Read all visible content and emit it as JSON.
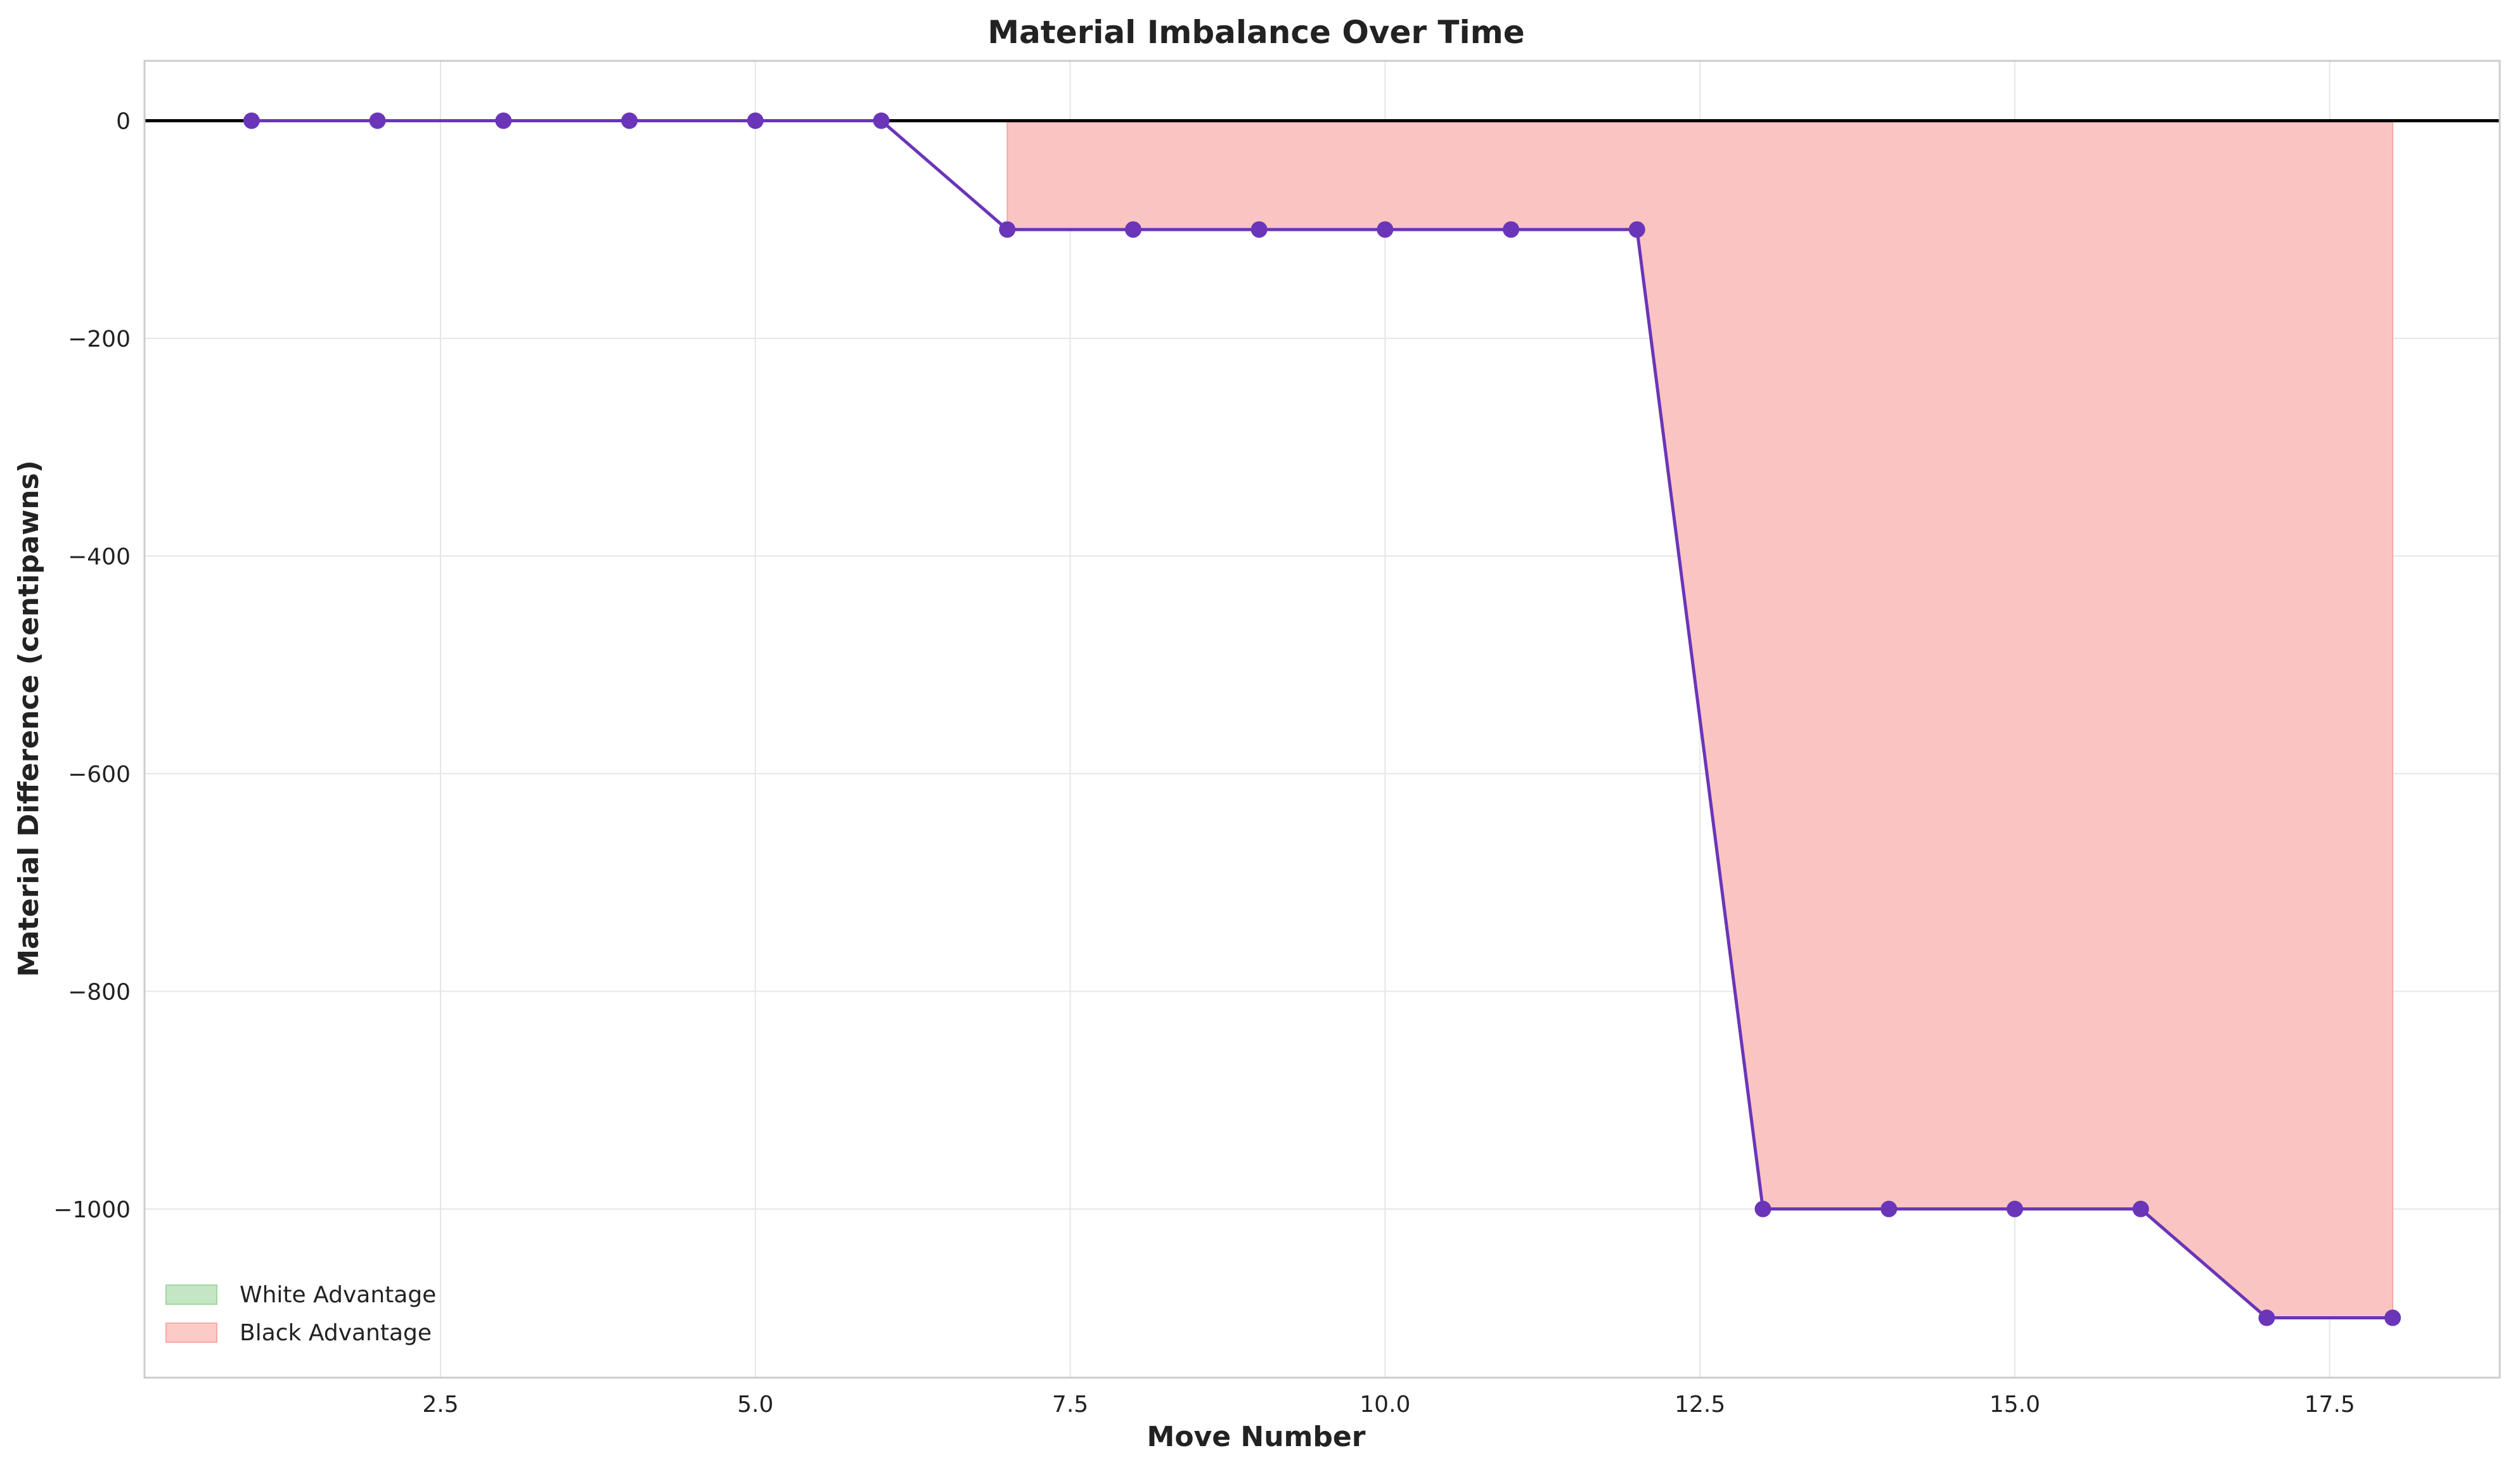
{
  "chart_data": {
    "type": "line",
    "title": "Material Imbalance Over Time",
    "xlabel": "Move Number",
    "ylabel": "Material Difference (centipawns)",
    "xlim": [
      0.15,
      18.85
    ],
    "ylim": [
      -1155,
      55
    ],
    "xticks": [
      2.5,
      5.0,
      7.5,
      10.0,
      12.5,
      15.0,
      17.5
    ],
    "xtick_labels": [
      "2.5",
      "5.0",
      "7.5",
      "10.0",
      "12.5",
      "15.0",
      "17.5"
    ],
    "yticks": [
      0,
      -200,
      -400,
      -600,
      -800,
      -1000
    ],
    "ytick_labels": [
      "0",
      "−200",
      "−400",
      "−600",
      "−800",
      "−1000"
    ],
    "grid": true,
    "baseline": 0,
    "x": [
      1,
      2,
      3,
      4,
      5,
      6,
      7,
      8,
      9,
      10,
      11,
      12,
      13,
      14,
      15,
      16,
      17,
      18
    ],
    "series": [
      {
        "values": [
          0,
          0,
          0,
          0,
          0,
          0,
          -100,
          -100,
          -100,
          -100,
          -100,
          -100,
          -1000,
          -1000,
          -1000,
          -1000,
          -1100,
          -1100
        ],
        "color": "#6a35b8"
      }
    ],
    "legend": {
      "placement": "lower-left",
      "entries": [
        {
          "label": "White Advantage",
          "color": "#9fd69f"
        },
        {
          "label": "Black Advantage",
          "color": "#f9a8a4"
        }
      ]
    },
    "colors": {
      "black_fill": "#f9c4c2",
      "black_fill_edge": "#f5a9a5",
      "baseline": "#000000",
      "grid": "#e6e6e6",
      "frame": "#cccccc"
    }
  }
}
